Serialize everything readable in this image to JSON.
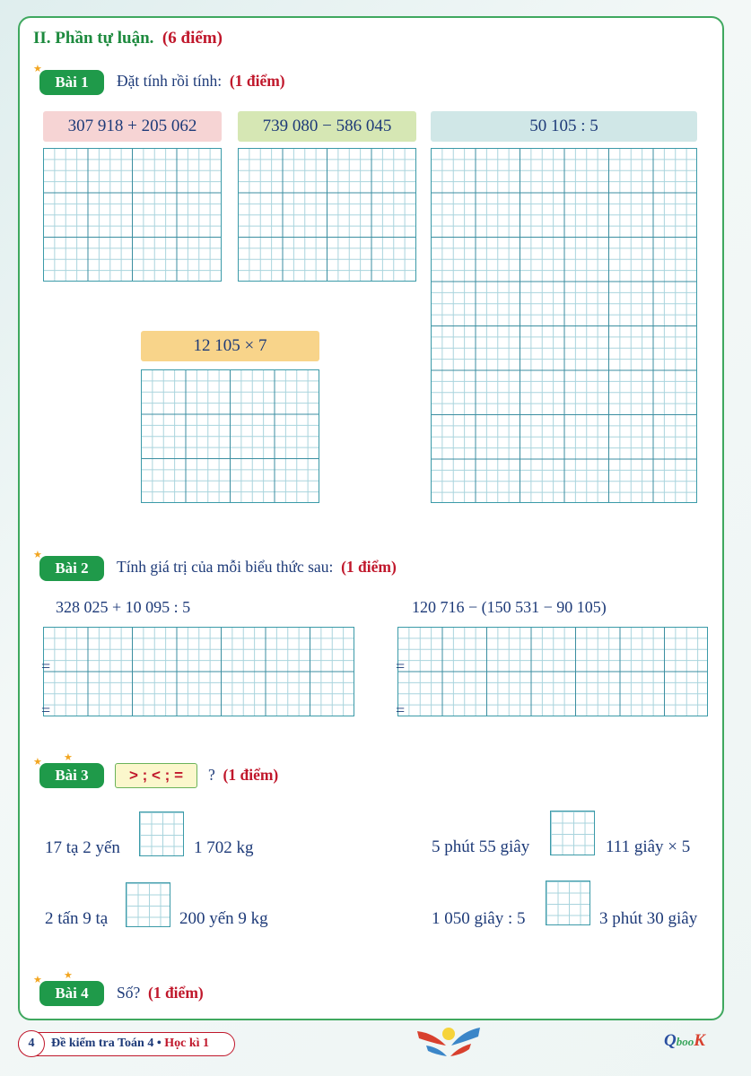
{
  "section": {
    "title": "II. Phần tự luận.",
    "points": "(6 điểm)"
  },
  "bai1": {
    "badge": "Bài 1",
    "text": "Đặt tính rồi tính:",
    "points": "(1 điểm)",
    "problems": [
      "307 918 + 205 062",
      "739 080 − 586 045",
      "50 105 : 5",
      "12 105 × 7"
    ],
    "colors": [
      "#f6d4d4",
      "#d6e7b4",
      "#d0e7e7",
      "#f8d48a"
    ]
  },
  "bai2": {
    "badge": "Bài 2",
    "text": "Tính giá trị của mỗi biểu thức sau:",
    "points": "(1 điểm)",
    "expressions": [
      "328 025 + 10 095 : 5",
      "120 716 − (150 531 − 90 105)"
    ],
    "eq": "="
  },
  "bai3": {
    "badge": "Bài 3",
    "symbols": "> ; < ; =",
    "question": "?",
    "points": "(1 điểm)",
    "rows": [
      [
        "17 tạ 2 yến",
        "1 702 kg"
      ],
      [
        "2 tấn 9 tạ",
        "200 yến 9 kg"
      ],
      [
        "5 phút 55 giây",
        "111 giây × 5"
      ],
      [
        "1 050 giây : 5",
        "3 phút 30 giây"
      ]
    ]
  },
  "bai4": {
    "badge": "Bài 4",
    "text": "Số?",
    "points": "(1 điểm)"
  },
  "footer": {
    "page": "4",
    "book": "Đề kiểm tra Toán  4 •",
    "term": "Học kì 1",
    "logo": "QBooks"
  },
  "colors": {
    "green": "#1f9a4a",
    "red": "#c0172b",
    "navy": "#1d3a78",
    "grid": "#3b8ea0"
  }
}
